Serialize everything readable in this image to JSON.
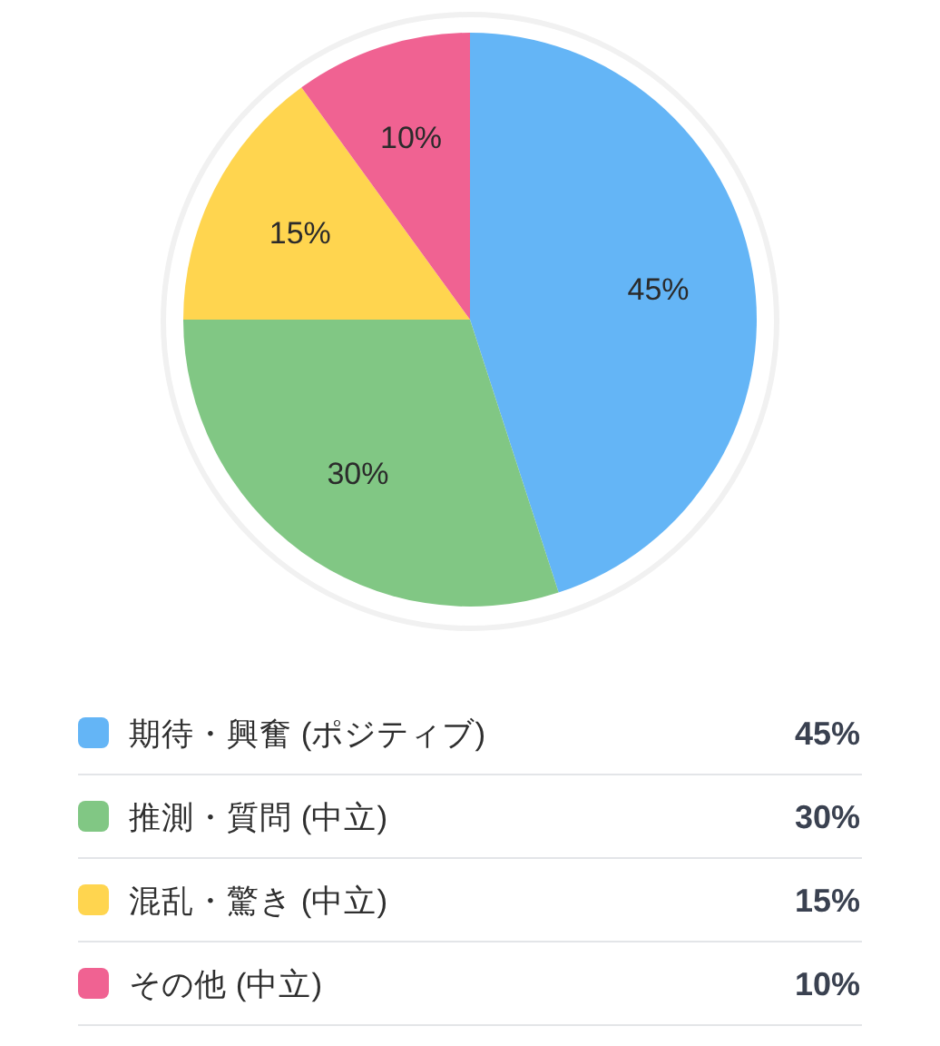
{
  "chart_data": {
    "type": "pie",
    "categories": [
      "期待・興奮 (ポジティブ)",
      "推測・質問 (中立)",
      "混乱・驚き (中立)",
      "その他 (中立)"
    ],
    "values": [
      45,
      30,
      15,
      10
    ],
    "colors": [
      "#64b5f6",
      "#81c784",
      "#ffd54f",
      "#f06292"
    ],
    "value_labels": [
      "45%",
      "30%",
      "15%",
      "10%"
    ],
    "legend": "bottom"
  }
}
